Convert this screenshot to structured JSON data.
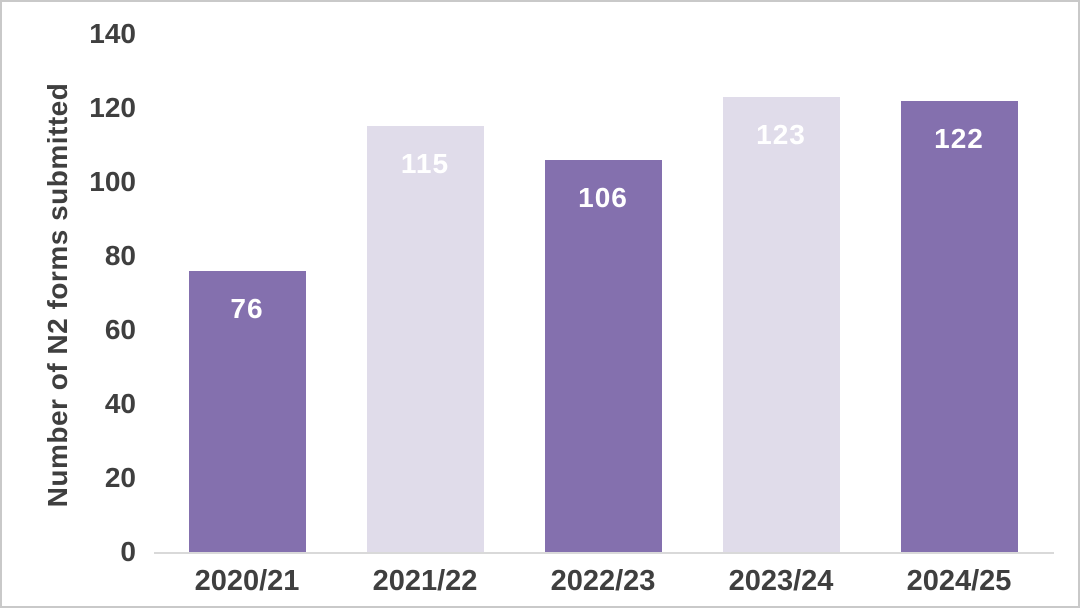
{
  "chart_data": {
    "type": "bar",
    "title": "",
    "xlabel": "",
    "ylabel": "Number of N2 forms submitted",
    "categories": [
      "2020/21",
      "2021/22",
      "2022/23",
      "2023/24",
      "2024/25"
    ],
    "values": [
      76,
      115,
      106,
      123,
      122
    ],
    "bar_labels": [
      "76",
      "115",
      "106",
      "123",
      "122"
    ],
    "ylim": [
      0,
      140
    ],
    "yticks": [
      0,
      20,
      40,
      60,
      80,
      100,
      120,
      140
    ],
    "grid": false,
    "legend": false,
    "bar_colors": [
      "#8470AE",
      "#E0DCEA",
      "#8470AE",
      "#E0DCEA",
      "#8470AE"
    ],
    "bar_label_color": "#FFFFFF",
    "axis_line_color": "#D9D9D9",
    "tick_label_color": "#3F3F3F",
    "frame_border_color": "#C9C9C9"
  }
}
